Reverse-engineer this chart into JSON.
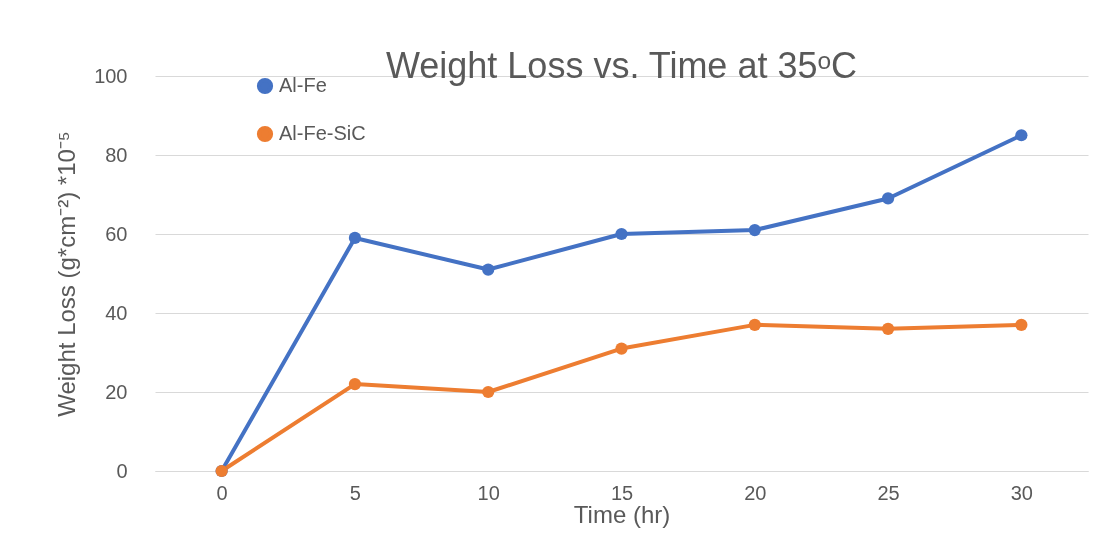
{
  "chart_data": {
    "type": "line",
    "title": "Weight Loss vs. Time at 35ᵒC",
    "xlabel": "Time (hr)",
    "ylabel": "Weight Loss (g*cm⁻²) *10⁻⁵",
    "categories": [
      "0",
      "5",
      "10",
      "15",
      "20",
      "25",
      "30"
    ],
    "series": [
      {
        "name": "Al-Fe",
        "color": "#4472c4",
        "values": [
          0,
          59,
          51,
          60,
          61,
          69,
          85
        ]
      },
      {
        "name": "Al-Fe-SiC",
        "color": "#ed7d31",
        "values": [
          0,
          22,
          20,
          31,
          37,
          36,
          37
        ]
      }
    ],
    "ylim": [
      0,
      100
    ],
    "yticks": [
      0,
      20,
      40,
      60,
      80,
      100
    ],
    "grid": "y",
    "legend": "top left",
    "marker": "circle",
    "line_style": "solid"
  }
}
